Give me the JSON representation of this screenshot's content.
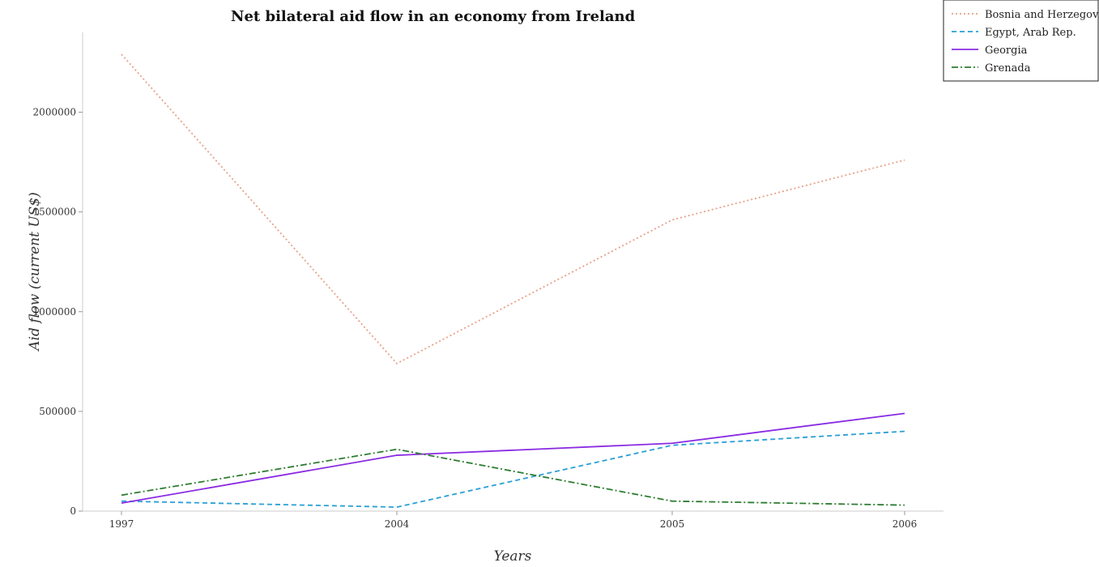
{
  "chart_data": {
    "type": "line",
    "title": "Net bilateral aid flow in an economy from Ireland",
    "xlabel": "Years",
    "ylabel": "Aid flow (current US$)",
    "categories": [
      "1997",
      "2004",
      "2005",
      "2006"
    ],
    "y_ticks": [
      0,
      500000,
      1000000,
      1500000,
      2000000
    ],
    "y_tick_labels": [
      "0",
      "500000",
      "1000000",
      "1500000",
      "2000000"
    ],
    "ylim": [
      0,
      2400000
    ],
    "legend_position": "top-right",
    "series": [
      {
        "name": "Bosnia and Herzegovina",
        "values": [
          2290000,
          740000,
          1460000,
          1760000
        ],
        "color": "#e8a088",
        "dash": "dotted"
      },
      {
        "name": "Egypt, Arab Rep.",
        "values": [
          50000,
          20000,
          330000,
          400000
        ],
        "color": "#2a9fd6",
        "dash": "dashed"
      },
      {
        "name": "Georgia",
        "values": [
          40000,
          280000,
          340000,
          490000
        ],
        "color": "#8a2be2",
        "dash": "solid"
      },
      {
        "name": "Grenada",
        "values": [
          80000,
          310000,
          50000,
          30000
        ],
        "color": "#2e7d32",
        "dash": "dashdot"
      }
    ]
  }
}
